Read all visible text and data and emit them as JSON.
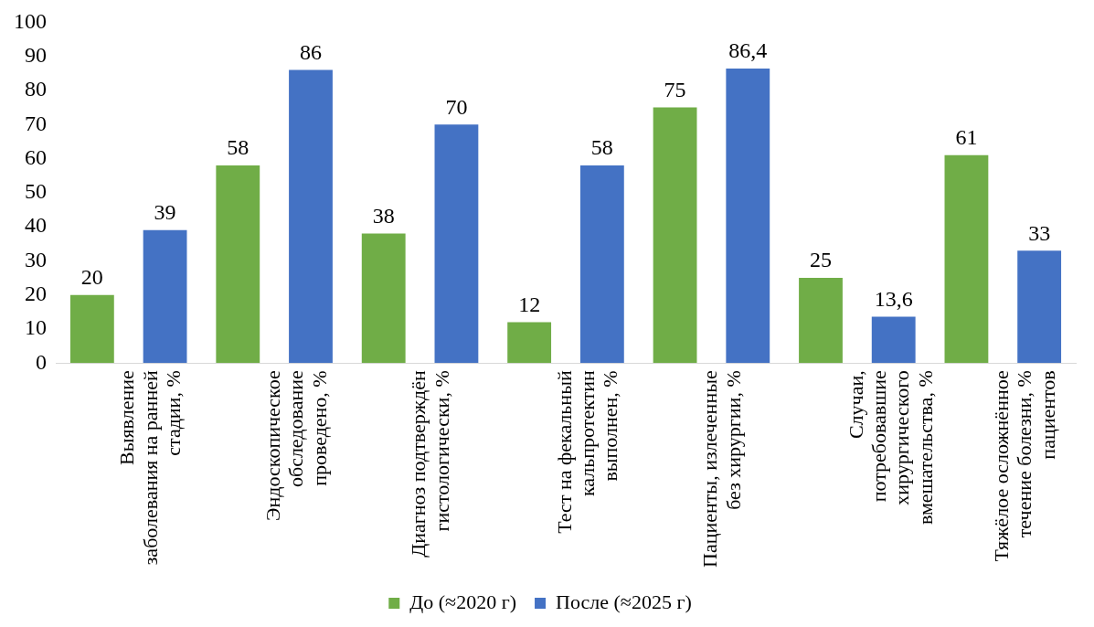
{
  "chart_data": {
    "type": "bar",
    "categories": [
      "Выявление\nзаболевания на ранней\nстадии, %",
      "Эндоскопическое\nобследование\nпроведено, %",
      "Диагноз подтверждён\nгистологически, %",
      "Тест на фекальный\nкальпротектин\nвыполнен, %",
      "Пациенты, излеченные\nбез хирургии, %",
      "Случаи,\nпотребовавшие\nхирургического\nвмешательства, %",
      "Тяжёлое осложнённое\nтечение болезни, %\nпациентов"
    ],
    "series": [
      {
        "name": "До (≈2020 г)",
        "color": "#70ad47",
        "values": [
          20,
          58,
          38,
          12,
          75,
          25,
          61
        ],
        "value_labels": [
          "20",
          "58",
          "38",
          "12",
          "75",
          "25",
          "61"
        ]
      },
      {
        "name": "После (≈2025 г)",
        "color": "#4472c4",
        "values": [
          39,
          86,
          70,
          58,
          86.4,
          13.6,
          33
        ],
        "value_labels": [
          "39",
          "86",
          "70",
          "58",
          "86,4",
          "13,6",
          "33"
        ]
      }
    ],
    "ylim": [
      0,
      100
    ],
    "yticks": [
      0,
      10,
      20,
      30,
      40,
      50,
      60,
      70,
      80,
      90,
      100
    ],
    "grid": false,
    "legend": "bottom"
  }
}
